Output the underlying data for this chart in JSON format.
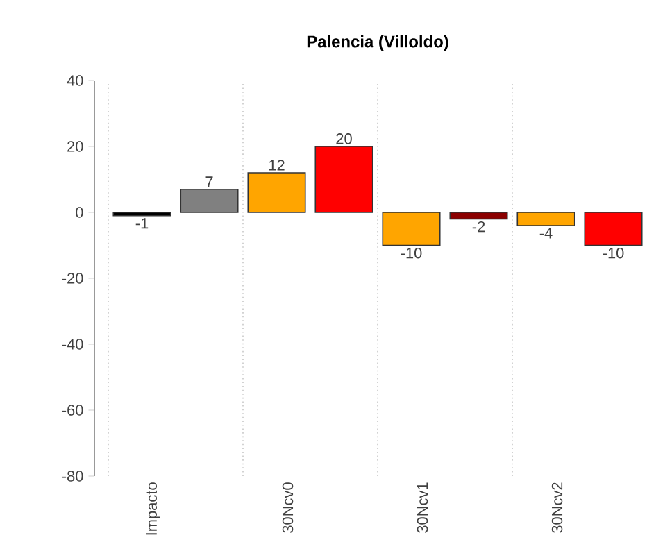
{
  "chart_data": {
    "type": "bar",
    "title": "Palencia (Villoldo)",
    "categories": [
      "Impacto",
      null,
      "30Ncv0",
      null,
      "30Ncv1",
      null,
      "30Ncv2",
      null
    ],
    "values": [
      -1,
      7,
      12,
      20,
      -10,
      -2,
      -4,
      -10
    ],
    "value_labels": [
      "-1",
      "7",
      "12",
      "20",
      "-10",
      "-2",
      "-4",
      "-10"
    ],
    "colors": [
      "#000000",
      "#808080",
      "#ffa500",
      "#ff0000",
      "#ffa500",
      "#8b0000",
      "#ffa500",
      "#ff0000"
    ],
    "ylim": [
      -80,
      40
    ],
    "yticks": [
      -80,
      -60,
      -40,
      -20,
      0,
      20,
      40
    ],
    "grid": false
  }
}
